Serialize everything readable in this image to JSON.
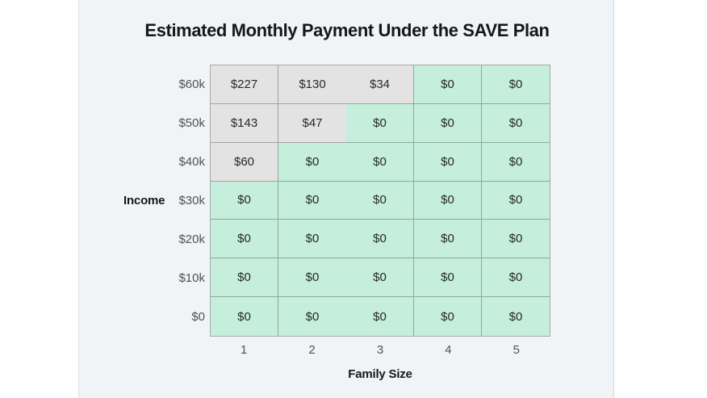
{
  "card": {
    "background": "#f0f4f7"
  },
  "chart_data": {
    "type": "heatmap",
    "title": "Estimated Monthly Payment Under the SAVE Plan",
    "xlabel": "Family Size",
    "ylabel": "Income",
    "x_ticks": [
      "1",
      "2",
      "3",
      "4",
      "5"
    ],
    "y_ticks": [
      "$60k",
      "$50k",
      "$40k",
      "$30k",
      "$20k",
      "$10k",
      "$0"
    ],
    "rows": [
      {
        "income": "$60k",
        "values": [
          227,
          130,
          34,
          0,
          0
        ],
        "labels": [
          "$227",
          "$130",
          "$34",
          "$0",
          "$0"
        ]
      },
      {
        "income": "$50k",
        "values": [
          143,
          47,
          0,
          0,
          0
        ],
        "labels": [
          "$143",
          "$47",
          "$0",
          "$0",
          "$0"
        ]
      },
      {
        "income": "$40k",
        "values": [
          60,
          0,
          0,
          0,
          0
        ],
        "labels": [
          "$60",
          "$0",
          "$0",
          "$0",
          "$0"
        ]
      },
      {
        "income": "$30k",
        "values": [
          0,
          0,
          0,
          0,
          0
        ],
        "labels": [
          "$0",
          "$0",
          "$0",
          "$0",
          "$0"
        ]
      },
      {
        "income": "$20k",
        "values": [
          0,
          0,
          0,
          0,
          0
        ],
        "labels": [
          "$0",
          "$0",
          "$0",
          "$0",
          "$0"
        ]
      },
      {
        "income": "$10k",
        "values": [
          0,
          0,
          0,
          0,
          0
        ],
        "labels": [
          "$0",
          "$0",
          "$0",
          "$0",
          "$0"
        ]
      },
      {
        "income": "$0",
        "values": [
          0,
          0,
          0,
          0,
          0
        ],
        "labels": [
          "$0",
          "$0",
          "$0",
          "$0",
          "$0"
        ]
      }
    ],
    "colors": {
      "nonzero_cell": "#e3e3e4",
      "zero_cell": "#c5eedc"
    },
    "layout_hints": {
      "grid_on": true,
      "legend": "none",
      "missing_gridline": "between columns 2 and 3"
    }
  }
}
